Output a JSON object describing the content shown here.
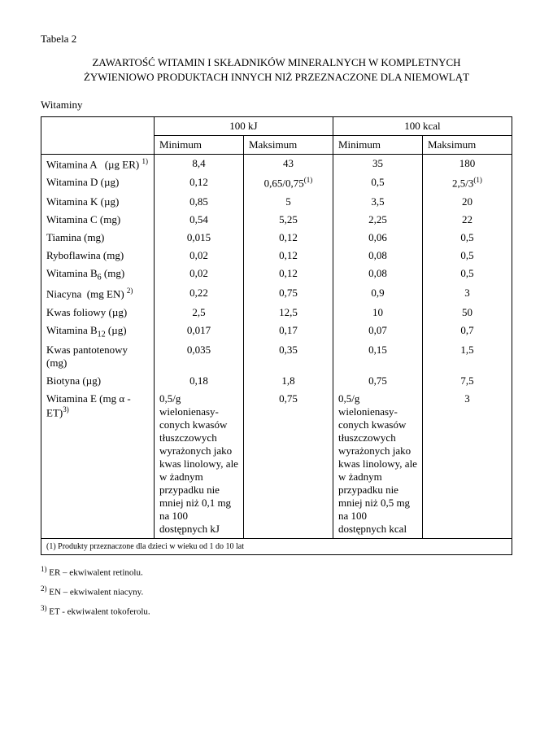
{
  "tableLabel": "Tabela 2",
  "title1": "ZAWARTOŚĆ WITAMIN I SKŁADNIKÓW MINERALNYCH W KOMPLETNYCH",
  "title2": "ŻYWIENIOWO PRODUKTACH INNYCH NIŻ PRZEZNACZONE DLA NIEMOWLĄT",
  "sectionLabel": "Witaminy",
  "headers": {
    "group1": "100 kJ",
    "group2": "100 kcal",
    "min": "Minimum",
    "max": "Maksimum"
  },
  "rows": [
    {
      "nameHtml": "Witamina A &nbsp;&nbsp;(µg ER) <sup>1)</sup>",
      "v1": "8,4",
      "v2": "43",
      "v3": "35",
      "v4": "180"
    },
    {
      "nameHtml": "Witamina D (µg)",
      "v1": "0,12",
      "v2Html": "0,65/0,75<sup>(1)</sup>",
      "v3": "0,5",
      "v4Html": "2,5/3<sup>(1)</sup>"
    },
    {
      "nameHtml": "Witamina K (µg)",
      "v1": "0,85",
      "v2": "5",
      "v3": "3,5",
      "v4": "20"
    },
    {
      "nameHtml": "Witamina C (mg)",
      "v1": "0,54",
      "v2": "5,25",
      "v3": "2,25",
      "v4": "22"
    },
    {
      "nameHtml": "Tiamina (mg)",
      "v1": "0,015",
      "v2": "0,12",
      "v3": "0,06",
      "v4": "0,5"
    },
    {
      "nameHtml": "Ryboflawina (mg)",
      "v1": "0,02",
      "v2": "0,12",
      "v3": "0,08",
      "v4": "0,5"
    },
    {
      "nameHtml": "Witamina B<sub>6</sub> (mg)",
      "v1": "0,02",
      "v2": "0,12",
      "v3": "0,08",
      "v4": "0,5"
    },
    {
      "nameHtml": "Niacyna &nbsp;(mg EN) <sup>2)</sup>",
      "v1": "0,22",
      "v2": "0,75",
      "v3": "0,9",
      "v4": "3"
    },
    {
      "nameHtml": "Kwas foliowy (µg)",
      "v1": "2,5",
      "v2": "12,5",
      "v3": "10",
      "v4": "50"
    },
    {
      "nameHtml": "Witamina B<sub>12</sub> (µg)",
      "v1": "0,017",
      "v2": "0,17",
      "v3": "0,07",
      "v4": "0,7"
    },
    {
      "nameHtml": "Kwas pantotenowy (mg)",
      "v1": "0,035",
      "v2": "0,35",
      "v3": "0,15",
      "v4": "1,5"
    },
    {
      "nameHtml": "Biotyna (µg)",
      "v1": "0,18",
      "v2": "1,8",
      "v3": "0,75",
      "v4": "7,5"
    },
    {
      "nameHtml": "Witamina E (mg α - ET)<sup>3)</sup>",
      "v1": "0,5/g wielonienasy­conych kwasów tłuszczowych wyrażonych jako kwas linolowy, ale w żadnym przypadku nie mniej niż 0,1 mg na 100 dostępnych kJ",
      "v2": "0,75",
      "v3": "0,5/g wielonienasy­conych kwasów tłuszczowych wyrażonych jako kwas linolowy, ale w żadnym przypadku nie mniej niż 0,5 mg na 100 dostępnych kcal",
      "v4": "3",
      "longText": true
    }
  ],
  "tableFootnote": "(1) Produkty przeznaczone dla dzieci w wieku od 1 do 10 lat",
  "notes": [
    "<sup>1)</sup> ER – ekwiwalent retinolu.",
    "<sup>2)</sup> EN – ekwiwalent niacyny.",
    "<sup>3)</sup> ET -  ekwiwalent tokoferolu."
  ]
}
